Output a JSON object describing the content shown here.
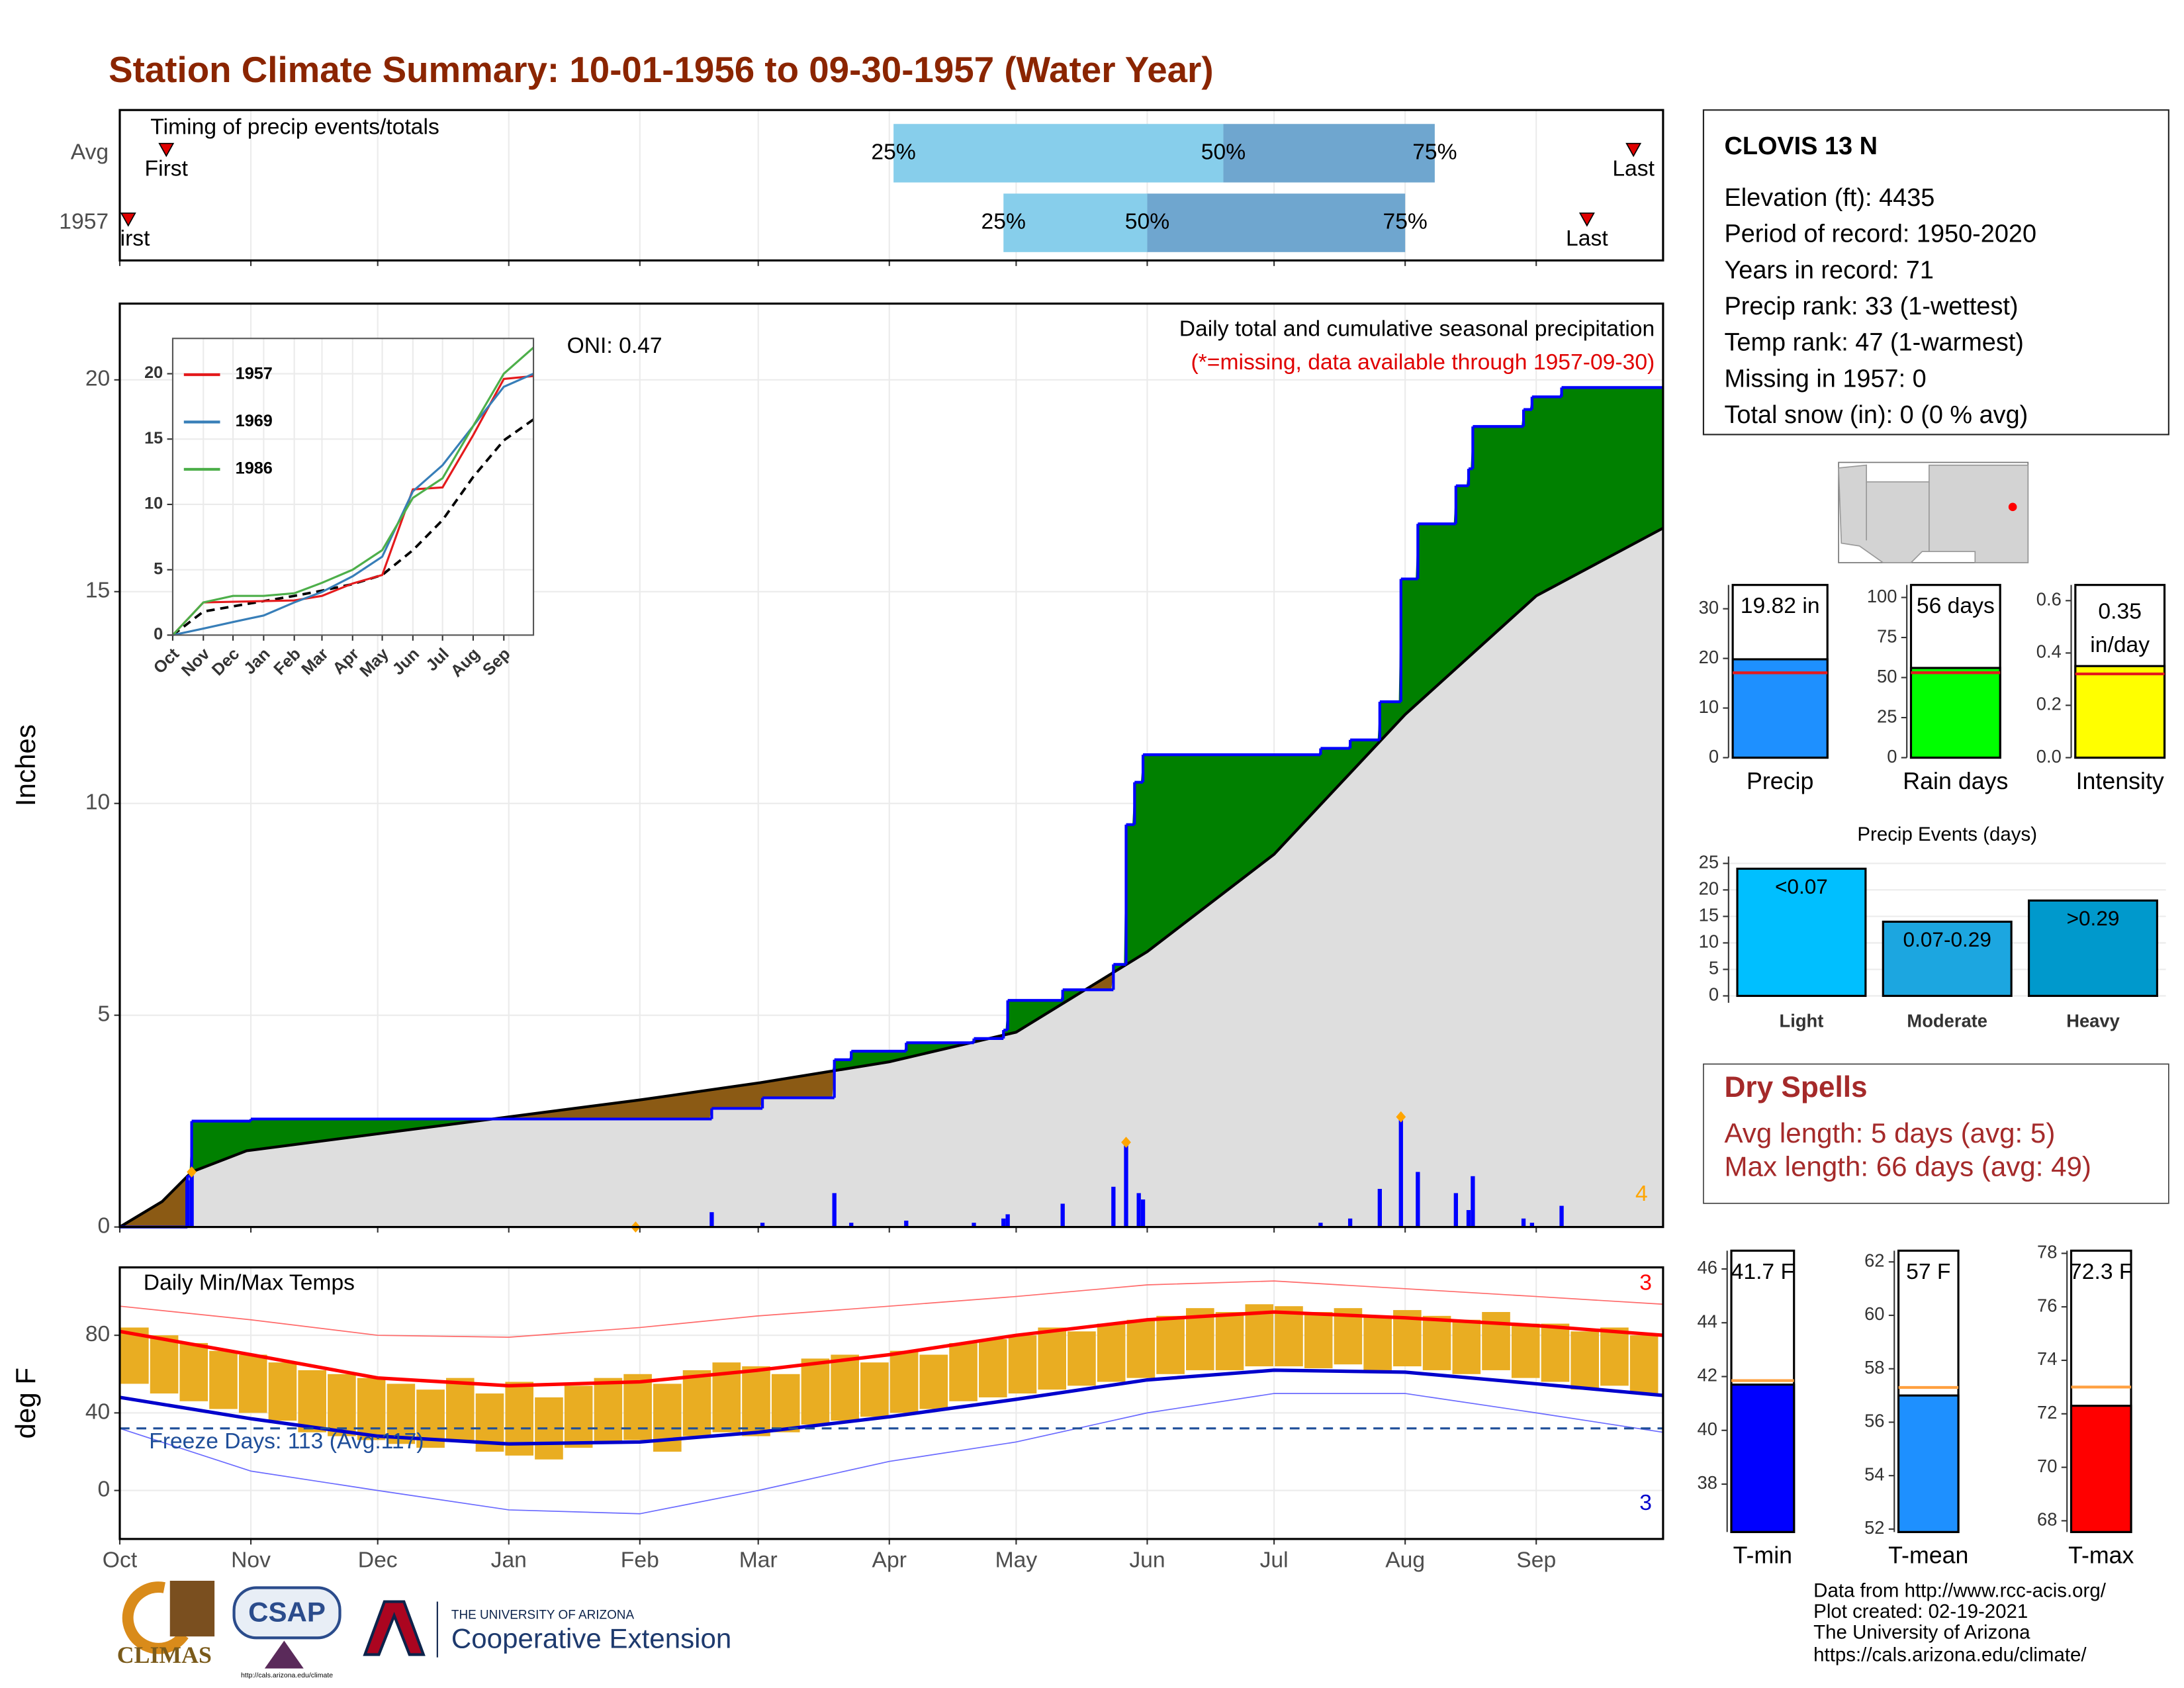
{
  "title": "Station Climate Summary: 10-01-1956 to 09-30-1957 (Water Year)",
  "station": {
    "name": "CLOVIS 13 N",
    "lines": [
      "Elevation (ft): 4435",
      "Period of record: 1950-2020",
      "Years in record: 71",
      "Precip rank: 33 (1-wettest)",
      "Temp rank: 47 (1-warmest)",
      "Missing in 1957: 0",
      "Total snow (in): 0 (0 % avg)"
    ]
  },
  "dry_spells": {
    "title": "Dry Spells",
    "lines": [
      "Avg length: 5 days (avg: 5)",
      "Max length: 66 days (avg: 49)"
    ]
  },
  "footer": [
    "Data from http://www.rcc-acis.org/",
    "Plot created: 02-19-2021",
    "The University of Arizona",
    "https://cals.arizona.edu/climate/"
  ],
  "logos": {
    "climas": "CLIMAS",
    "csap": "CSAP",
    "csap_url": "http://cals.arizona.edu/climate",
    "ua_small": "THE UNIVERSITY OF ARIZONA",
    "ua_big": "Cooperative Extension"
  },
  "chart_data": [
    {
      "type": "timing",
      "title": "Timing of precip events/totals",
      "xlim": [
        0,
        365
      ],
      "xticks": [
        0,
        31,
        61,
        92,
        123,
        151,
        182,
        212,
        243,
        273,
        304,
        335
      ],
      "grid": true,
      "labels": {
        "first": "First",
        "last": "Last",
        "q25": "25%",
        "q50": "50%",
        "q75": "75%"
      },
      "colors": {
        "lower": "#87ceeb",
        "upper": "#6fa6cf",
        "marker": "#e00000"
      },
      "rows": [
        {
          "name": "Avg",
          "first": 11,
          "q25": 183,
          "q50": 261,
          "q75": 311,
          "last": 358
        },
        {
          "name": "1957",
          "first": 2,
          "q25": 209,
          "q50": 243,
          "q75": 304,
          "last": 347
        }
      ]
    },
    {
      "type": "cumulative",
      "title": "Daily total and cumulative seasonal precipitation",
      "note": "(*=missing, data available through 1957-09-30)",
      "annotation": "ONI: 0.47",
      "extreme_count": 4,
      "ylabel": "Inches",
      "xlim": [
        0,
        365
      ],
      "xticks": [
        0,
        31,
        61,
        92,
        123,
        151,
        182,
        212,
        243,
        273,
        304,
        335
      ],
      "ylim": [
        0,
        21.8
      ],
      "yticks": [
        0,
        5,
        10,
        15,
        20
      ],
      "grid": true,
      "colors": {
        "observed": "#0000ff",
        "average": "#000000",
        "above": "#008000",
        "below": "#8b5a14",
        "base": "#dedede",
        "daily": "#0000ff",
        "extremes": "#ffa500",
        "note": "#e00000"
      },
      "observed": {
        "x": [
          0,
          16,
          17,
          31,
          140,
          152,
          169,
          173,
          186,
          202,
          209,
          210,
          223,
          235,
          238,
          240,
          242,
          284,
          291,
          298,
          303,
          307,
          316,
          319,
          320,
          332,
          334,
          341
        ],
        "values": [
          0,
          1.2,
          2.5,
          2.55,
          2.8,
          3.05,
          3.95,
          4.15,
          4.35,
          4.45,
          4.65,
          5.35,
          5.6,
          6.2,
          9.5,
          10.5,
          11.15,
          11.3,
          11.5,
          12.4,
          15.3,
          16.6,
          17.5,
          17.9,
          18.9,
          19.3,
          19.6,
          19.82
        ]
      },
      "average": {
        "x": [
          0,
          10,
          17,
          30,
          61,
          92,
          123,
          151,
          182,
          212,
          243,
          273,
          304,
          335,
          365
        ],
        "values": [
          0,
          0.6,
          1.3,
          1.8,
          2.2,
          2.6,
          3.0,
          3.4,
          3.9,
          4.6,
          6.5,
          8.8,
          12.1,
          14.9,
          16.5
        ]
      },
      "daily": {
        "x": [
          16,
          17,
          140,
          152,
          169,
          173,
          186,
          202,
          209,
          210,
          223,
          235,
          238,
          241,
          242,
          284,
          291,
          298,
          303,
          307,
          316,
          319,
          320,
          332,
          334,
          341
        ],
        "values": [
          1.1,
          1.3,
          0.35,
          0.1,
          0.8,
          0.1,
          0.15,
          0.1,
          0.2,
          0.3,
          0.55,
          0.95,
          2.0,
          0.8,
          0.65,
          0.1,
          0.2,
          0.9,
          2.6,
          1.3,
          0.8,
          0.4,
          1.2,
          0.2,
          0.1,
          0.5
        ]
      },
      "extremes": {
        "x": [
          17,
          122,
          238,
          303
        ],
        "values": [
          1.3,
          0,
          2.0,
          2.6
        ]
      }
    },
    {
      "type": "line",
      "xlim": [
        0,
        365
      ],
      "xticks": [
        {
          "value": 0,
          "label": "Oct"
        },
        {
          "value": 31,
          "label": "Nov"
        },
        {
          "value": 61,
          "label": "Dec"
        },
        {
          "value": 92,
          "label": "Jan"
        },
        {
          "value": 123,
          "label": "Feb"
        },
        {
          "value": 151,
          "label": "Mar"
        },
        {
          "value": 182,
          "label": "Apr"
        },
        {
          "value": 212,
          "label": "May"
        },
        {
          "value": 243,
          "label": "Jun"
        },
        {
          "value": 273,
          "label": "Jul"
        },
        {
          "value": 304,
          "label": "Aug"
        },
        {
          "value": 335,
          "label": "Sep"
        }
      ],
      "ylim": [
        0,
        22.7
      ],
      "yticks": [
        0,
        5,
        10,
        15,
        20
      ],
      "grid": true,
      "x": [
        0,
        31,
        61,
        92,
        123,
        151,
        182,
        212,
        243,
        273,
        304,
        335,
        365
      ],
      "series": [
        {
          "name": "1957",
          "color": "#e41a1c",
          "values": [
            0,
            2.5,
            2.55,
            2.6,
            2.65,
            3.0,
            3.95,
            4.6,
            11.15,
            11.3,
            15.3,
            19.6,
            19.82
          ]
        },
        {
          "name": "1969",
          "color": "#377eb8",
          "values": [
            0,
            0.5,
            1.0,
            1.5,
            2.5,
            3.3,
            4.5,
            6.0,
            11.0,
            13.0,
            16.0,
            19.0,
            20.0
          ]
        },
        {
          "name": "1986",
          "color": "#4daf4a",
          "values": [
            0,
            2.5,
            3.0,
            3.0,
            3.2,
            4.0,
            5.0,
            6.5,
            10.5,
            12.0,
            16.0,
            20.0,
            22.0
          ]
        }
      ],
      "average": {
        "color": "#000000",
        "values": [
          0,
          1.8,
          2.2,
          2.6,
          3.0,
          3.4,
          3.9,
          4.6,
          6.5,
          8.8,
          12.1,
          14.9,
          16.5
        ]
      }
    },
    {
      "type": "range",
      "title": "Daily Min/Max Temps",
      "ylabel": "deg F",
      "freeze_label": "Freeze Days: 113 (Avg:117)",
      "freeze_line": 32,
      "record_high_count": 3,
      "record_low_count": 3,
      "xlim": [
        0,
        365
      ],
      "xticks": [
        {
          "value": 0,
          "label": "Oct"
        },
        {
          "value": 31,
          "label": "Nov"
        },
        {
          "value": 61,
          "label": "Dec"
        },
        {
          "value": 92,
          "label": "Jan"
        },
        {
          "value": 123,
          "label": "Feb"
        },
        {
          "value": 151,
          "label": "Mar"
        },
        {
          "value": 182,
          "label": "Apr"
        },
        {
          "value": 212,
          "label": "May"
        },
        {
          "value": 243,
          "label": "Jun"
        },
        {
          "value": 273,
          "label": "Jul"
        },
        {
          "value": 304,
          "label": "Aug"
        },
        {
          "value": 335,
          "label": "Sep"
        }
      ],
      "ylim": [
        -25,
        115
      ],
      "yticks": [
        0,
        40,
        80
      ],
      "grid": true,
      "bar_days": 7,
      "colors": {
        "bars": "#e9ad22",
        "avg_max": "#ff0000",
        "avg_min": "#0000cc",
        "record_max": "#ff6a6a",
        "record_min": "#6a6aff",
        "freeze": "#1f4e99"
      },
      "daily": {
        "x": [
          0,
          7,
          14,
          21,
          28,
          35,
          42,
          49,
          56,
          63,
          70,
          77,
          84,
          91,
          98,
          105,
          112,
          119,
          126,
          133,
          140,
          147,
          154,
          161,
          168,
          175,
          182,
          189,
          196,
          203,
          210,
          217,
          224,
          231,
          238,
          245,
          252,
          259,
          266,
          273,
          280,
          287,
          294,
          301,
          308,
          315,
          322,
          329,
          336,
          343,
          350,
          357
        ],
        "max": [
          84,
          80,
          76,
          72,
          70,
          66,
          62,
          60,
          58,
          55,
          52,
          58,
          50,
          56,
          48,
          54,
          58,
          60,
          55,
          62,
          66,
          64,
          60,
          68,
          70,
          66,
          72,
          70,
          76,
          78,
          80,
          84,
          82,
          86,
          88,
          90,
          94,
          92,
          96,
          95,
          92,
          94,
          90,
          93,
          90,
          88,
          92,
          86,
          86,
          82,
          84,
          80
        ],
        "min": [
          55,
          50,
          46,
          42,
          40,
          36,
          30,
          28,
          26,
          24,
          22,
          26,
          20,
          18,
          16,
          22,
          24,
          26,
          20,
          28,
          30,
          28,
          30,
          34,
          36,
          38,
          40,
          42,
          46,
          48,
          50,
          52,
          54,
          56,
          58,
          60,
          62,
          62,
          64,
          64,
          63,
          65,
          62,
          64,
          62,
          60,
          62,
          58,
          56,
          52,
          54,
          50
        ]
      },
      "normals": {
        "x": [
          0,
          31,
          61,
          92,
          123,
          151,
          182,
          212,
          243,
          273,
          304,
          335,
          365
        ],
        "avg_max": [
          82,
          70,
          58,
          54,
          56,
          62,
          70,
          80,
          88,
          92,
          89,
          85,
          80
        ],
        "avg_min": [
          48,
          37,
          28,
          24,
          25,
          30,
          38,
          47,
          57,
          62,
          61,
          55,
          49
        ],
        "record_max": [
          95,
          88,
          80,
          79,
          84,
          90,
          95,
          100,
          106,
          108,
          104,
          100,
          96
        ],
        "record_min": [
          32,
          10,
          0,
          -10,
          -12,
          0,
          15,
          25,
          40,
          50,
          50,
          40,
          30
        ]
      }
    },
    {
      "type": "gauge",
      "label": "Precip",
      "values": [
        19.82
      ],
      "value_labels": [
        "19.82 in"
      ],
      "average": 17.1,
      "color": "#1e90ff",
      "avg_color": "#e41a1c",
      "ylim": [
        0,
        34.8
      ],
      "yticks": [
        0,
        10,
        20,
        30
      ]
    },
    {
      "type": "gauge",
      "label": "Rain days",
      "values": [
        56
      ],
      "value_labels": [
        "56 days"
      ],
      "average": 53,
      "color": "#00ff00",
      "avg_color": "#e41a1c",
      "ylim": [
        0,
        107.8
      ],
      "yticks": [
        0,
        25,
        50,
        75,
        100
      ]
    },
    {
      "type": "gauge",
      "label": "Intensity",
      "values": [
        0.35
      ],
      "value_labels": [
        "0.35 in/day"
      ],
      "average": 0.32,
      "color": "#ffff00",
      "avg_color": "#e41a1c",
      "ylim": [
        0,
        0.66
      ],
      "yticks": [
        {
          "value": 0,
          "label": "0.0"
        },
        0.2,
        0.4,
        0.6
      ]
    },
    {
      "type": "bar",
      "title": "Precip Events (days)",
      "categories": [
        "Light",
        "Moderate",
        "Heavy"
      ],
      "values": [
        24,
        14,
        18
      ],
      "bar_labels": [
        "<0.07",
        "0.07-0.29",
        ">0.29"
      ],
      "colors": [
        "#00bfff",
        "#1ca6e0",
        "#0099cc"
      ],
      "ylim": [
        -1.3,
        26.3
      ],
      "yticks": [
        0,
        5,
        10,
        15,
        20,
        25
      ],
      "grid": true
    },
    {
      "type": "gauge",
      "label": "T-min",
      "values": [
        41.7
      ],
      "value_labels": [
        "41.7 F"
      ],
      "average": 41.85,
      "color": "#0000ff",
      "avg_color": "#ffa040",
      "ylim": [
        36.22,
        46.68
      ],
      "yticks": [
        38,
        40,
        42,
        44,
        46
      ]
    },
    {
      "type": "gauge",
      "label": "T-mean",
      "values": [
        57
      ],
      "value_labels": [
        "57 F"
      ],
      "average": 57.3,
      "color": "#1e90ff",
      "avg_color": "#ffa040",
      "ylim": [
        51.89,
        62.42
      ],
      "yticks": [
        52,
        54,
        56,
        58,
        60,
        62
      ]
    },
    {
      "type": "gauge",
      "label": "T-max",
      "values": [
        72.3
      ],
      "value_labels": [
        "72.3 F"
      ],
      "average": 73,
      "color": "#ff0000",
      "avg_color": "#ffa040",
      "ylim": [
        67.58,
        78.1
      ],
      "yticks": [
        68,
        70,
        72,
        74,
        76,
        78
      ]
    }
  ]
}
